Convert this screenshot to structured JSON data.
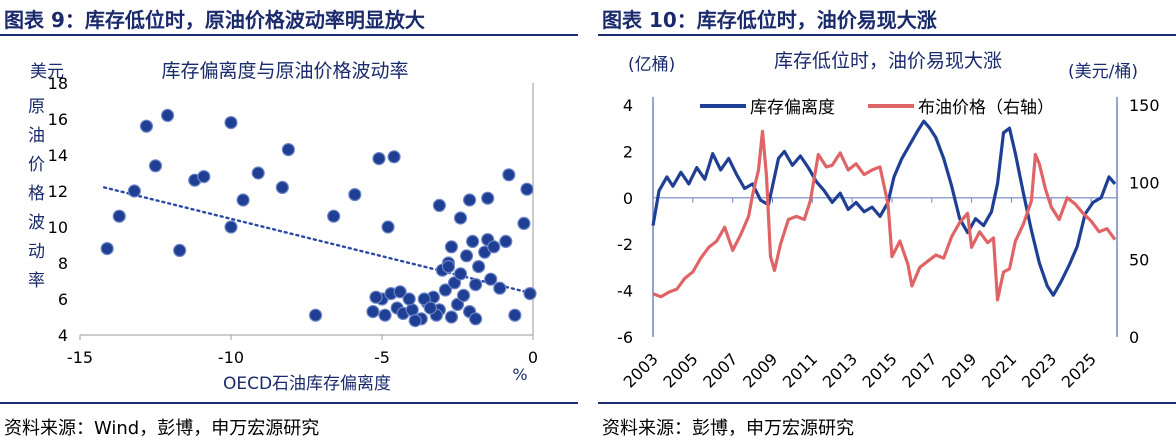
{
  "left_panel": {
    "title": "图表 9：库存低位时，原油价格波动率明显放大",
    "source": "资料来源：Wind，彭博，申万宏源研究"
  },
  "right_panel": {
    "title": "图表 10：库存低位时，油价易现大涨",
    "source": "资料来源：彭博，申万宏源研究"
  },
  "chart_data": [
    {
      "type": "scatter",
      "title": "库存偏离度与原油价格波动率",
      "ylabel_unit": "美元",
      "ylabel_chars": [
        "原",
        "油",
        "价",
        "格",
        "波",
        "动",
        "率"
      ],
      "xlabel": "OECD石油库存偏离度",
      "x_unit": "%",
      "xlim": [
        -15,
        0
      ],
      "ylim": [
        4,
        18
      ],
      "x_ticks": [
        "-15",
        "-10",
        "-5",
        "0"
      ],
      "y_ticks": [
        "4",
        "6",
        "8",
        "10",
        "12",
        "14",
        "16",
        "18"
      ],
      "colors": {
        "point": "#1f3f94",
        "trend": "#2b4aa8"
      },
      "trendline": {
        "x": [
          -14.2,
          0
        ],
        "y": [
          12.2,
          6.3
        ]
      },
      "points": [
        [
          -14.1,
          8.8
        ],
        [
          -13.7,
          10.6
        ],
        [
          -13.2,
          12.0
        ],
        [
          -12.8,
          15.6
        ],
        [
          -12.5,
          13.4
        ],
        [
          -12.1,
          16.2
        ],
        [
          -11.7,
          8.7
        ],
        [
          -11.2,
          12.6
        ],
        [
          -10.9,
          12.8
        ],
        [
          -10.0,
          15.8
        ],
        [
          -10.0,
          10.0
        ],
        [
          -9.6,
          11.5
        ],
        [
          -9.1,
          13.0
        ],
        [
          -8.3,
          12.2
        ],
        [
          -8.1,
          14.3
        ],
        [
          -7.2,
          5.1
        ],
        [
          -6.6,
          10.6
        ],
        [
          -5.9,
          11.8
        ],
        [
          -5.1,
          13.8
        ],
        [
          -4.6,
          13.9
        ],
        [
          -4.8,
          10.0
        ],
        [
          -5.3,
          5.3
        ],
        [
          -5.0,
          6.0
        ],
        [
          -4.7,
          6.3
        ],
        [
          -4.5,
          5.5
        ],
        [
          -4.3,
          5.2
        ],
        [
          -4.0,
          5.4
        ],
        [
          -3.7,
          4.9
        ],
        [
          -3.5,
          5.8
        ],
        [
          -3.3,
          6.1
        ],
        [
          -3.1,
          5.4
        ],
        [
          -2.9,
          6.5
        ],
        [
          -2.7,
          5.0
        ],
        [
          -2.5,
          5.7
        ],
        [
          -2.3,
          6.2
        ],
        [
          -2.1,
          5.3
        ],
        [
          -1.9,
          4.9
        ],
        [
          -5.2,
          6.1
        ],
        [
          -4.9,
          5.1
        ],
        [
          -4.4,
          6.4
        ],
        [
          -3.9,
          4.8
        ],
        [
          -3.6,
          6.0
        ],
        [
          -3.2,
          5.1
        ],
        [
          -3.0,
          7.6
        ],
        [
          -2.8,
          8.0
        ],
        [
          -2.6,
          6.9
        ],
        [
          -2.4,
          7.4
        ],
        [
          -2.2,
          8.4
        ],
        [
          -2.0,
          9.2
        ],
        [
          -1.8,
          7.8
        ],
        [
          -1.6,
          8.6
        ],
        [
          -1.5,
          9.3
        ],
        [
          -1.3,
          8.9
        ],
        [
          -1.1,
          6.6
        ],
        [
          -0.9,
          9.2
        ],
        [
          -0.8,
          12.9
        ],
        [
          -0.6,
          5.1
        ],
        [
          -0.3,
          10.2
        ],
        [
          -0.2,
          12.1
        ],
        [
          -0.1,
          6.3
        ],
        [
          -3.1,
          11.2
        ],
        [
          -2.4,
          10.5
        ],
        [
          -2.1,
          11.5
        ],
        [
          -1.5,
          11.6
        ],
        [
          -2.8,
          7.8
        ],
        [
          -1.9,
          6.8
        ],
        [
          -3.4,
          5.5
        ],
        [
          -2.7,
          8.9
        ],
        [
          -1.4,
          7.1
        ],
        [
          -4.1,
          6.0
        ]
      ]
    },
    {
      "type": "line",
      "title": "库存低位时，油价易现大涨",
      "ylabel_left": "(亿桶)",
      "ylabel_right": "(美元/桶)",
      "left_ylim": [
        -6,
        4
      ],
      "right_ylim": [
        0,
        150
      ],
      "left_ticks": [
        "4",
        "2",
        "0",
        "-2",
        "-4",
        "-6"
      ],
      "right_ticks": [
        "150",
        "100",
        "50",
        "0"
      ],
      "x_range": [
        2003.0,
        2026.3
      ],
      "x_ticks": [
        "2003",
        "2005",
        "2007",
        "2009",
        "2011",
        "2013",
        "2015",
        "2017",
        "2019",
        "2021",
        "2023",
        "2025"
      ],
      "series": [
        {
          "name": "库存偏离度",
          "axis": "left",
          "color": "#1f3f94",
          "points": [
            [
              2003.0,
              -1.2
            ],
            [
              2003.3,
              0.3
            ],
            [
              2003.7,
              0.9
            ],
            [
              2004.0,
              0.5
            ],
            [
              2004.4,
              1.1
            ],
            [
              2004.8,
              0.6
            ],
            [
              2005.2,
              1.3
            ],
            [
              2005.6,
              0.8
            ],
            [
              2006.0,
              1.9
            ],
            [
              2006.4,
              1.2
            ],
            [
              2006.8,
              1.7
            ],
            [
              2007.2,
              1.0
            ],
            [
              2007.6,
              0.4
            ],
            [
              2008.0,
              0.6
            ],
            [
              2008.4,
              -0.1
            ],
            [
              2008.8,
              -0.3
            ],
            [
              2009.0,
              0.5
            ],
            [
              2009.3,
              1.7
            ],
            [
              2009.6,
              2.0
            ],
            [
              2010.0,
              1.4
            ],
            [
              2010.4,
              1.8
            ],
            [
              2010.8,
              1.3
            ],
            [
              2011.2,
              0.7
            ],
            [
              2011.6,
              0.3
            ],
            [
              2012.0,
              -0.2
            ],
            [
              2012.4,
              0.2
            ],
            [
              2012.8,
              -0.5
            ],
            [
              2013.2,
              -0.2
            ],
            [
              2013.6,
              -0.6
            ],
            [
              2014.0,
              -0.4
            ],
            [
              2014.4,
              -0.8
            ],
            [
              2014.8,
              -0.2
            ],
            [
              2015.1,
              0.9
            ],
            [
              2015.5,
              1.7
            ],
            [
              2015.9,
              2.3
            ],
            [
              2016.3,
              2.9
            ],
            [
              2016.6,
              3.3
            ],
            [
              2016.9,
              3.0
            ],
            [
              2017.2,
              2.6
            ],
            [
              2017.6,
              1.7
            ],
            [
              2018.0,
              0.5
            ],
            [
              2018.4,
              -0.9
            ],
            [
              2018.8,
              -1.5
            ],
            [
              2019.2,
              -0.9
            ],
            [
              2019.6,
              -1.2
            ],
            [
              2020.0,
              -0.6
            ],
            [
              2020.3,
              0.6
            ],
            [
              2020.6,
              2.8
            ],
            [
              2020.9,
              3.0
            ],
            [
              2021.2,
              1.9
            ],
            [
              2021.6,
              0.2
            ],
            [
              2022.0,
              -1.4
            ],
            [
              2022.4,
              -2.8
            ],
            [
              2022.8,
              -3.8
            ],
            [
              2023.1,
              -4.2
            ],
            [
              2023.5,
              -3.6
            ],
            [
              2023.9,
              -2.9
            ],
            [
              2024.3,
              -2.1
            ],
            [
              2024.7,
              -0.7
            ],
            [
              2025.1,
              -0.2
            ],
            [
              2025.5,
              0.0
            ],
            [
              2025.9,
              0.9
            ],
            [
              2026.2,
              0.6
            ]
          ]
        },
        {
          "name": "布油价格（右轴）",
          "axis": "right",
          "color": "#e06466",
          "points": [
            [
              2003.0,
              28
            ],
            [
              2003.4,
              26
            ],
            [
              2003.8,
              29
            ],
            [
              2004.2,
              31
            ],
            [
              2004.6,
              38
            ],
            [
              2005.0,
              42
            ],
            [
              2005.4,
              51
            ],
            [
              2005.8,
              58
            ],
            [
              2006.2,
              62
            ],
            [
              2006.6,
              71
            ],
            [
              2007.0,
              56
            ],
            [
              2007.4,
              66
            ],
            [
              2007.8,
              78
            ],
            [
              2008.0,
              92
            ],
            [
              2008.3,
              108
            ],
            [
              2008.5,
              133
            ],
            [
              2008.7,
              104
            ],
            [
              2008.9,
              52
            ],
            [
              2009.1,
              43
            ],
            [
              2009.4,
              60
            ],
            [
              2009.8,
              76
            ],
            [
              2010.2,
              78
            ],
            [
              2010.6,
              76
            ],
            [
              2010.9,
              88
            ],
            [
              2011.3,
              118
            ],
            [
              2011.7,
              110
            ],
            [
              2012.0,
              111
            ],
            [
              2012.4,
              119
            ],
            [
              2012.8,
              108
            ],
            [
              2013.2,
              112
            ],
            [
              2013.6,
              105
            ],
            [
              2014.0,
              108
            ],
            [
              2014.4,
              110
            ],
            [
              2014.8,
              86
            ],
            [
              2015.0,
              52
            ],
            [
              2015.4,
              62
            ],
            [
              2015.8,
              47
            ],
            [
              2016.0,
              33
            ],
            [
              2016.4,
              45
            ],
            [
              2016.8,
              49
            ],
            [
              2017.2,
              53
            ],
            [
              2017.6,
              51
            ],
            [
              2018.0,
              65
            ],
            [
              2018.4,
              74
            ],
            [
              2018.8,
              80
            ],
            [
              2019.0,
              58
            ],
            [
              2019.4,
              68
            ],
            [
              2019.8,
              61
            ],
            [
              2020.1,
              64
            ],
            [
              2020.3,
              24
            ],
            [
              2020.6,
              42
            ],
            [
              2020.9,
              44
            ],
            [
              2021.2,
              62
            ],
            [
              2021.6,
              73
            ],
            [
              2022.0,
              88
            ],
            [
              2022.2,
              118
            ],
            [
              2022.4,
              112
            ],
            [
              2022.7,
              96
            ],
            [
              2023.0,
              84
            ],
            [
              2023.4,
              76
            ],
            [
              2023.8,
              90
            ],
            [
              2024.2,
              86
            ],
            [
              2024.6,
              80
            ],
            [
              2025.0,
              75
            ],
            [
              2025.4,
              68
            ],
            [
              2025.8,
              70
            ],
            [
              2026.2,
              63
            ]
          ]
        }
      ]
    }
  ]
}
